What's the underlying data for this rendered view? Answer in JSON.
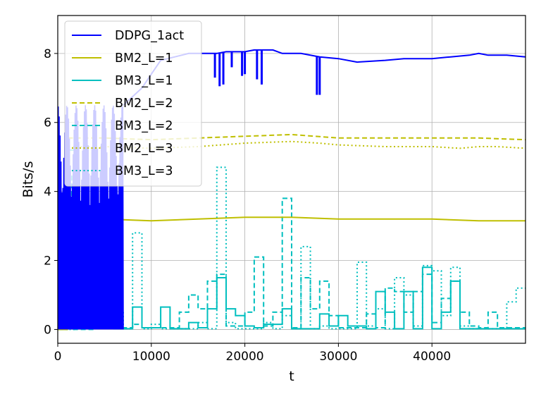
{
  "chart_data": {
    "type": "line",
    "title": "",
    "xlabel": "t",
    "ylabel": "Bits/s",
    "xlim": [
      0,
      50000
    ],
    "ylim": [
      -0.4,
      9.1
    ],
    "xticks": [
      0,
      10000,
      20000,
      30000,
      40000
    ],
    "xtick_labels": [
      "0",
      "10000",
      "20000",
      "30000",
      "40000"
    ],
    "yticks": [
      0,
      2,
      4,
      6,
      8
    ],
    "ytick_labels": [
      "0",
      "2",
      "4",
      "6",
      "8"
    ],
    "grid": true,
    "legend_position": "top-left",
    "series": [
      {
        "name": "DDPG_1act",
        "color": "#0000ff",
        "style": "solid",
        "noisy_band": {
          "x_start": 0,
          "x_end": 7000,
          "low": 0.0,
          "high": 6.5
        },
        "points": [
          [
            7000,
            6.5
          ],
          [
            9000,
            7.0
          ],
          [
            11000,
            7.8
          ],
          [
            14000,
            8.0
          ],
          [
            17000,
            8.0
          ],
          [
            18000,
            8.05
          ],
          [
            20000,
            8.05
          ],
          [
            21000,
            8.1
          ],
          [
            23000,
            8.1
          ],
          [
            24000,
            8.0
          ],
          [
            26000,
            8.0
          ],
          [
            28000,
            7.9
          ],
          [
            30000,
            7.85
          ],
          [
            32000,
            7.75
          ],
          [
            35000,
            7.8
          ],
          [
            37000,
            7.85
          ],
          [
            40000,
            7.85
          ],
          [
            42000,
            7.9
          ],
          [
            44000,
            7.95
          ],
          [
            45000,
            8.0
          ],
          [
            46000,
            7.95
          ],
          [
            48000,
            7.95
          ],
          [
            50000,
            7.9
          ]
        ],
        "dips": [
          [
            16800,
            7.3
          ],
          [
            17300,
            7.05
          ],
          [
            17700,
            7.1
          ],
          [
            18600,
            7.6
          ],
          [
            19700,
            7.35
          ],
          [
            20000,
            7.4
          ],
          [
            21300,
            7.25
          ],
          [
            21800,
            7.1
          ],
          [
            27700,
            6.8
          ],
          [
            28000,
            6.8
          ]
        ]
      },
      {
        "name": "BM2_L=1",
        "color": "#bfbf00",
        "style": "solid",
        "points": [
          [
            0,
            0
          ],
          [
            1000,
            0
          ],
          [
            1000,
            3.2
          ],
          [
            5000,
            3.2
          ],
          [
            10000,
            3.15
          ],
          [
            15000,
            3.2
          ],
          [
            20000,
            3.25
          ],
          [
            25000,
            3.25
          ],
          [
            30000,
            3.2
          ],
          [
            35000,
            3.2
          ],
          [
            40000,
            3.2
          ],
          [
            45000,
            3.15
          ],
          [
            50000,
            3.15
          ]
        ]
      },
      {
        "name": "BM3_L=1",
        "color": "#00bfbf",
        "style": "solid",
        "points": [
          [
            0,
            0
          ],
          [
            1000,
            0
          ],
          [
            1000,
            5.2
          ],
          [
            2000,
            5.2
          ],
          [
            2000,
            0.1
          ],
          [
            3000,
            0.1
          ],
          [
            3000,
            0.2
          ],
          [
            4000,
            0.2
          ],
          [
            4000,
            0.05
          ],
          [
            5000,
            0.05
          ],
          [
            5000,
            0.7
          ],
          [
            6000,
            0.7
          ],
          [
            6000,
            0.02
          ],
          [
            8000,
            0.02
          ],
          [
            8000,
            0.65
          ],
          [
            9000,
            0.65
          ],
          [
            9000,
            0.05
          ],
          [
            11000,
            0.05
          ],
          [
            11000,
            0.65
          ],
          [
            12000,
            0.65
          ],
          [
            12000,
            0.02
          ],
          [
            14000,
            0.02
          ],
          [
            14000,
            0.2
          ],
          [
            15000,
            0.2
          ],
          [
            15000,
            0.05
          ],
          [
            16000,
            0.05
          ],
          [
            16000,
            0.6
          ],
          [
            17000,
            0.6
          ],
          [
            17000,
            1.5
          ],
          [
            18000,
            1.5
          ],
          [
            18000,
            0.6
          ],
          [
            19000,
            0.6
          ],
          [
            19000,
            0.4
          ],
          [
            20000,
            0.4
          ],
          [
            20000,
            0.1
          ],
          [
            21000,
            0.1
          ],
          [
            21000,
            0.05
          ],
          [
            22000,
            0.05
          ],
          [
            22000,
            0.15
          ],
          [
            24000,
            0.15
          ],
          [
            24000,
            0.6
          ],
          [
            25000,
            0.6
          ],
          [
            25000,
            0.02
          ],
          [
            28000,
            0.02
          ],
          [
            28000,
            0.45
          ],
          [
            29000,
            0.45
          ],
          [
            29000,
            0.1
          ],
          [
            30000,
            0.1
          ],
          [
            30000,
            0.4
          ],
          [
            31000,
            0.4
          ],
          [
            31000,
            0.1
          ],
          [
            33000,
            0.1
          ],
          [
            33000,
            0.02
          ],
          [
            34000,
            0.02
          ],
          [
            34000,
            1.1
          ],
          [
            35000,
            1.1
          ],
          [
            35000,
            0.5
          ],
          [
            36000,
            0.5
          ],
          [
            36000,
            0.02
          ],
          [
            37000,
            0.02
          ],
          [
            37000,
            1.1
          ],
          [
            38000,
            1.1
          ],
          [
            38000,
            0.02
          ],
          [
            39000,
            0.02
          ],
          [
            39000,
            1.8
          ],
          [
            40000,
            1.8
          ],
          [
            40000,
            0.02
          ],
          [
            41000,
            0.02
          ],
          [
            41000,
            0.5
          ],
          [
            42000,
            0.5
          ],
          [
            42000,
            1.4
          ],
          [
            43000,
            1.4
          ],
          [
            43000,
            0.02
          ],
          [
            50000,
            0.02
          ]
        ]
      },
      {
        "name": "BM2_L=2",
        "color": "#bfbf00",
        "style": "dashed",
        "points": [
          [
            0,
            0
          ],
          [
            1000,
            0
          ],
          [
            1000,
            5.55
          ],
          [
            5000,
            5.55
          ],
          [
            10000,
            5.5
          ],
          [
            15000,
            5.55
          ],
          [
            20000,
            5.6
          ],
          [
            25000,
            5.65
          ],
          [
            30000,
            5.55
          ],
          [
            35000,
            5.55
          ],
          [
            40000,
            5.55
          ],
          [
            45000,
            5.55
          ],
          [
            50000,
            5.5
          ]
        ]
      },
      {
        "name": "BM3_L=2",
        "color": "#00bfbf",
        "style": "dashed",
        "points": [
          [
            0,
            0
          ],
          [
            1000,
            0
          ],
          [
            1000,
            4.5
          ],
          [
            1500,
            4.5
          ],
          [
            1500,
            0
          ],
          [
            4000,
            0
          ],
          [
            4000,
            0.1
          ],
          [
            5000,
            0.1
          ],
          [
            5000,
            0.05
          ],
          [
            8000,
            0.05
          ],
          [
            8000,
            0.15
          ],
          [
            9000,
            0.15
          ],
          [
            9000,
            0.05
          ],
          [
            13000,
            0.05
          ],
          [
            13000,
            0.5
          ],
          [
            14000,
            0.5
          ],
          [
            14000,
            1.0
          ],
          [
            15000,
            1.0
          ],
          [
            15000,
            0.6
          ],
          [
            16000,
            0.6
          ],
          [
            16000,
            1.4
          ],
          [
            17000,
            1.4
          ],
          [
            17000,
            1.6
          ],
          [
            18000,
            1.6
          ],
          [
            18000,
            0.1
          ],
          [
            20000,
            0.1
          ],
          [
            20000,
            0.5
          ],
          [
            21000,
            0.5
          ],
          [
            21000,
            2.1
          ],
          [
            22000,
            2.1
          ],
          [
            22000,
            0.1
          ],
          [
            23000,
            0.1
          ],
          [
            23000,
            0.5
          ],
          [
            24000,
            0.5
          ],
          [
            24000,
            3.8
          ],
          [
            25000,
            3.8
          ],
          [
            25000,
            0.05
          ],
          [
            26000,
            0.05
          ],
          [
            26000,
            1.5
          ],
          [
            27000,
            1.5
          ],
          [
            27000,
            0.6
          ],
          [
            28000,
            0.6
          ],
          [
            28000,
            1.4
          ],
          [
            29000,
            1.4
          ],
          [
            29000,
            0.4
          ],
          [
            30000,
            0.4
          ],
          [
            30000,
            0.05
          ],
          [
            33000,
            0.05
          ],
          [
            33000,
            0.45
          ],
          [
            34000,
            0.45
          ],
          [
            34000,
            0.05
          ],
          [
            35000,
            0.05
          ],
          [
            35000,
            1.2
          ],
          [
            36000,
            1.2
          ],
          [
            36000,
            1.1
          ],
          [
            37000,
            1.1
          ],
          [
            37000,
            0.5
          ],
          [
            38000,
            0.5
          ],
          [
            38000,
            1.1
          ],
          [
            39000,
            1.1
          ],
          [
            39000,
            1.6
          ],
          [
            40000,
            1.6
          ],
          [
            40000,
            0.2
          ],
          [
            41000,
            0.2
          ],
          [
            41000,
            0.9
          ],
          [
            42000,
            0.9
          ],
          [
            42000,
            1.4
          ],
          [
            43000,
            1.4
          ],
          [
            43000,
            0.5
          ],
          [
            44000,
            0.5
          ],
          [
            44000,
            0.1
          ],
          [
            45000,
            0.1
          ],
          [
            45000,
            0.05
          ],
          [
            46000,
            0.05
          ],
          [
            46000,
            0.5
          ],
          [
            47000,
            0.5
          ],
          [
            47000,
            0.05
          ],
          [
            50000,
            0.05
          ]
        ]
      },
      {
        "name": "BM2_L=3",
        "color": "#bfbf00",
        "style": "dotted",
        "points": [
          [
            0,
            0
          ],
          [
            1000,
            0
          ],
          [
            1000,
            5.3
          ],
          [
            5000,
            5.3
          ],
          [
            10000,
            5.25
          ],
          [
            15000,
            5.3
          ],
          [
            20000,
            5.4
          ],
          [
            25000,
            5.45
          ],
          [
            28000,
            5.4
          ],
          [
            30000,
            5.35
          ],
          [
            35000,
            5.3
          ],
          [
            40000,
            5.3
          ],
          [
            43000,
            5.25
          ],
          [
            45000,
            5.3
          ],
          [
            47000,
            5.3
          ],
          [
            50000,
            5.25
          ]
        ]
      },
      {
        "name": "BM3_L=3",
        "color": "#00bfbf",
        "style": "dotted",
        "points": [
          [
            0,
            0
          ],
          [
            2000,
            0
          ],
          [
            2000,
            0.85
          ],
          [
            3000,
            0.85
          ],
          [
            3000,
            0.4
          ],
          [
            4000,
            0.4
          ],
          [
            4000,
            0.05
          ],
          [
            5000,
            0.05
          ],
          [
            5000,
            1.2
          ],
          [
            6000,
            1.2
          ],
          [
            6000,
            0.55
          ],
          [
            7000,
            0.55
          ],
          [
            7000,
            0.02
          ],
          [
            8000,
            0.02
          ],
          [
            8000,
            2.8
          ],
          [
            9000,
            2.8
          ],
          [
            9000,
            0.02
          ],
          [
            10000,
            0.02
          ],
          [
            10000,
            0.15
          ],
          [
            11000,
            0.15
          ],
          [
            11000,
            0.02
          ],
          [
            15000,
            0.02
          ],
          [
            15000,
            0.2
          ],
          [
            16000,
            0.2
          ],
          [
            16000,
            0.02
          ],
          [
            17000,
            0.02
          ],
          [
            17000,
            4.7
          ],
          [
            18000,
            4.7
          ],
          [
            18000,
            0.2
          ],
          [
            19000,
            0.2
          ],
          [
            19000,
            0.02
          ],
          [
            22000,
            0.02
          ],
          [
            22000,
            0.2
          ],
          [
            23000,
            0.2
          ],
          [
            23000,
            0.02
          ],
          [
            24000,
            0.02
          ],
          [
            24000,
            0.4
          ],
          [
            25000,
            0.4
          ],
          [
            25000,
            0.02
          ],
          [
            26000,
            0.02
          ],
          [
            26000,
            2.4
          ],
          [
            27000,
            2.4
          ],
          [
            27000,
            0.02
          ],
          [
            28000,
            0.02
          ],
          [
            28000,
            0.1
          ],
          [
            29000,
            0.1
          ],
          [
            29000,
            0.02
          ],
          [
            32000,
            0.02
          ],
          [
            32000,
            1.95
          ],
          [
            33000,
            1.95
          ],
          [
            33000,
            0.1
          ],
          [
            34000,
            0.1
          ],
          [
            34000,
            0.6
          ],
          [
            35000,
            0.6
          ],
          [
            35000,
            0.02
          ],
          [
            36000,
            0.02
          ],
          [
            36000,
            1.5
          ],
          [
            37000,
            1.5
          ],
          [
            37000,
            1.0
          ],
          [
            38000,
            1.0
          ],
          [
            38000,
            0.1
          ],
          [
            39000,
            0.1
          ],
          [
            39000,
            1.85
          ],
          [
            40000,
            1.85
          ],
          [
            40000,
            1.7
          ],
          [
            41000,
            1.7
          ],
          [
            41000,
            0.4
          ],
          [
            42000,
            0.4
          ],
          [
            42000,
            1.8
          ],
          [
            43000,
            1.8
          ],
          [
            43000,
            0.1
          ],
          [
            44000,
            0.1
          ],
          [
            44000,
            0.02
          ],
          [
            48000,
            0.02
          ],
          [
            48000,
            0.8
          ],
          [
            49000,
            0.8
          ],
          [
            49000,
            1.2
          ],
          [
            50000,
            1.2
          ]
        ]
      }
    ]
  }
}
